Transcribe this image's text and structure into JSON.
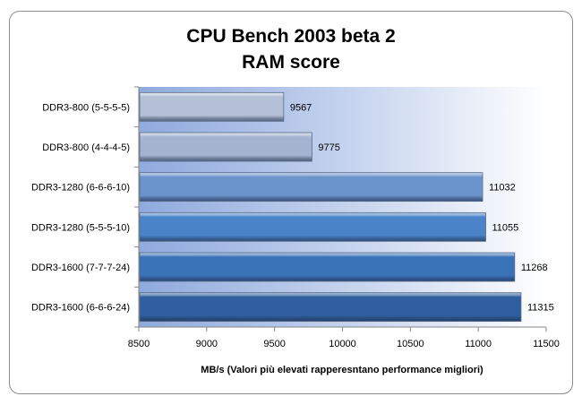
{
  "chart_data": {
    "type": "bar",
    "orientation": "horizontal",
    "title": "CPU Bench 2003 beta 2",
    "subtitle": "RAM score",
    "categories": [
      "DDR3-800 (5-5-5-5)",
      "DDR3-800 (4-4-4-5)",
      "DDR3-1280 (6-6-6-10)",
      "DDR3-1280 (5-5-5-10)",
      "DDR3-1600 (7-7-7-24)",
      "DDR3-1600 (6-6-6-24)"
    ],
    "values": [
      9567,
      9775,
      11032,
      11055,
      11268,
      11315
    ],
    "colors": [
      "#b4c0d6",
      "#a4b4d0",
      "#6b93cc",
      "#4a83c8",
      "#3a72b8",
      "#2f5f9e"
    ],
    "xlabel": "MB/s (Valori più  elevati rapperesntano performance migliori)",
    "ylabel": "",
    "xlim": [
      8500,
      11500
    ],
    "xticks": [
      8500,
      9000,
      9500,
      10000,
      10500,
      11000,
      11500
    ],
    "grid": false,
    "legend": "none"
  }
}
